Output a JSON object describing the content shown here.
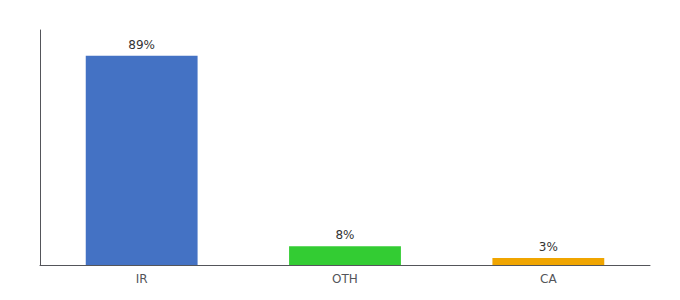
{
  "chart_data": {
    "type": "bar",
    "categories": [
      "IR",
      "OTH",
      "CA"
    ],
    "values": [
      89,
      8,
      3
    ],
    "value_labels": [
      "89%",
      "8%",
      "3%"
    ],
    "colors": [
      "#4472c4",
      "#33cc33",
      "#f0a500"
    ],
    "ylim": [
      0,
      100
    ],
    "data_labels": true,
    "tick_labels": "x",
    "grid": false
  }
}
